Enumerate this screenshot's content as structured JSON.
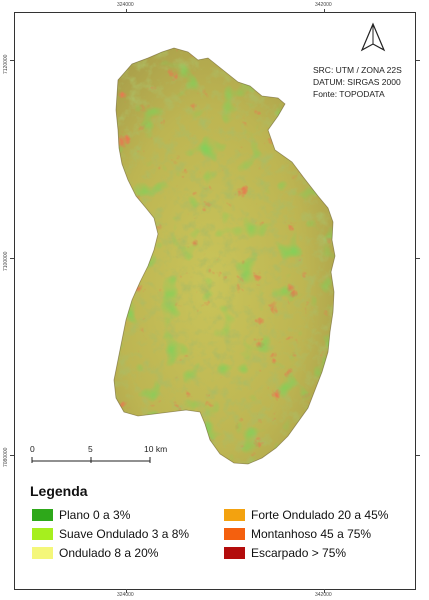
{
  "map": {
    "info_lines": [
      "SRC: UTM / ZONA 22S",
      "DATUM: SIRGAS 2000",
      "Fonte: TOPODATA"
    ],
    "x_ticks_top": [
      "324000",
      "342000"
    ],
    "x_ticks_bottom": [
      "324000",
      "342000"
    ],
    "y_ticks": [
      "7120000",
      "7100000",
      "7080000"
    ],
    "scale_labels": [
      "0",
      "5",
      "10 km"
    ],
    "north_arrow": "north-arrow-icon"
  },
  "legend": {
    "title": "Legenda",
    "items": [
      {
        "label": "Plano 0 a 3%",
        "color": "#2ea81a"
      },
      {
        "label": "Suave Ondulado 3 a 8%",
        "color": "#a6ef1e"
      },
      {
        "label": "Ondulado 8 a 20%",
        "color": "#f4f77a"
      },
      {
        "label": "Forte Ondulado 20 a 45%",
        "color": "#f3a20f"
      },
      {
        "label": "Montanhoso 45 a 75%",
        "color": "#f4600e"
      },
      {
        "label": "Escarpado > 75%",
        "color": "#b30c0c"
      }
    ]
  }
}
